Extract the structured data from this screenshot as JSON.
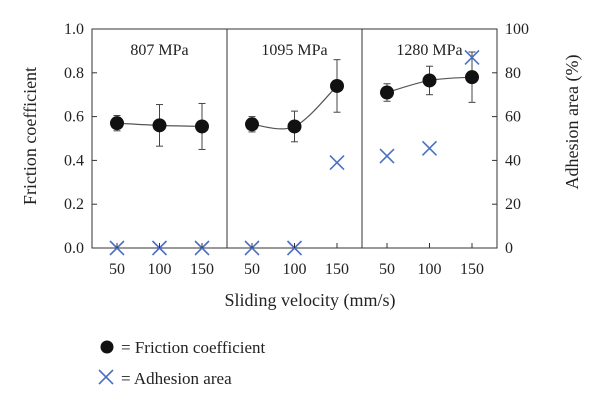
{
  "chart_data": {
    "type": "scatter",
    "panels": [
      {
        "title": "807 MPa",
        "velocities": [
          50,
          100,
          150
        ],
        "friction": {
          "values": [
            0.57,
            0.56,
            0.555
          ],
          "error": [
            0.035,
            0.095,
            0.105
          ]
        },
        "adhesion": [
          0,
          0,
          0
        ]
      },
      {
        "title": "1095 MPa",
        "velocities": [
          50,
          100,
          150
        ],
        "friction": {
          "values": [
            0.565,
            0.555,
            0.74
          ],
          "error": [
            0.035,
            0.07,
            0.12
          ]
        },
        "adhesion": [
          0,
          0,
          39
        ]
      },
      {
        "title": "1280 MPa",
        "velocities": [
          50,
          100,
          150
        ],
        "friction": {
          "values": [
            0.71,
            0.765,
            0.78
          ],
          "error": [
            0.04,
            0.065,
            0.115
          ]
        },
        "adhesion": [
          42,
          45.5,
          87
        ]
      }
    ],
    "x_ticks": [
      "50",
      "100",
      "150"
    ],
    "xlabel": "Sliding velocity (mm/s)",
    "ylabel_left": "Friction coefficient",
    "ylabel_right": "Adhesion area (%)",
    "ylim_left": [
      0,
      1.0
    ],
    "ylim_right": [
      0,
      100
    ],
    "yticks_left": [
      "0.0",
      "0.2",
      "0.4",
      "0.6",
      "0.8",
      "1.0"
    ],
    "yticks_right": [
      "0",
      "20",
      "40",
      "60",
      "80",
      "100"
    ],
    "grid": false,
    "legend_placement": "bottom-left",
    "legend": {
      "friction": "= Friction coefficient",
      "adhesion": "= Adhesion area"
    },
    "colors": {
      "friction_marker": "#111111",
      "adhesion_marker": "#4a6fc4",
      "axis": "#333333"
    }
  }
}
